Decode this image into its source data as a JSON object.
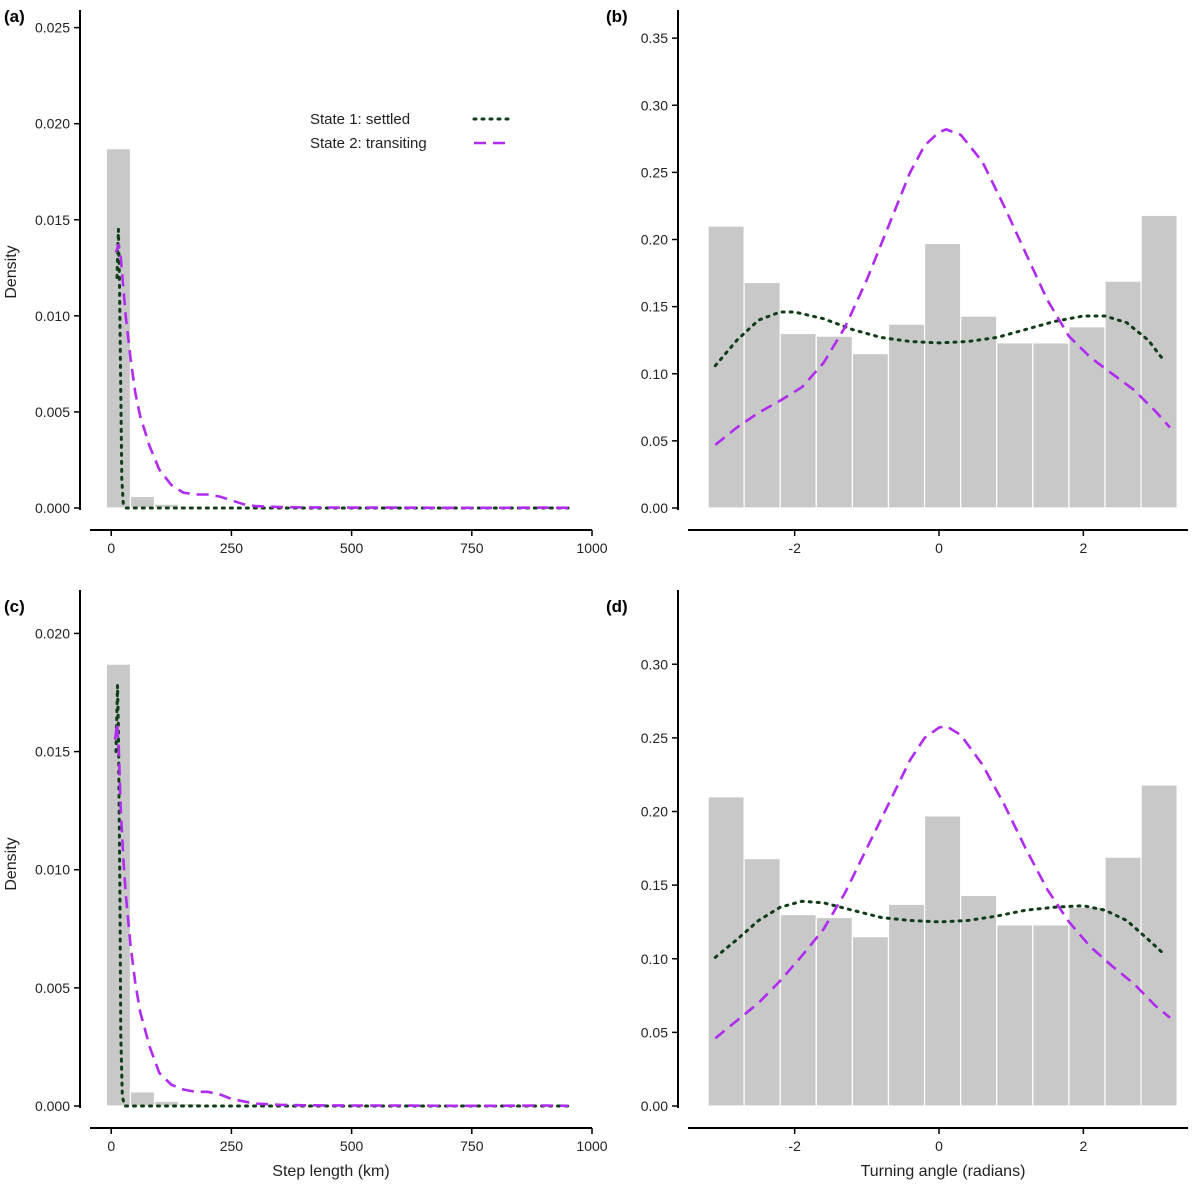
{
  "colors": {
    "bar": "#c8c8c8",
    "settled": "#0f3d18",
    "transiting": "#b02bf0",
    "axis": "#000000"
  },
  "legend": {
    "entries": [
      {
        "label": "State 1: settled",
        "series": "settled"
      },
      {
        "label": "State 2: transiting",
        "series": "transiting"
      }
    ]
  },
  "chart_data": [
    {
      "panel": "(a)",
      "type": "bar",
      "xlabel": "",
      "ylabel": "Density",
      "xlim": [
        -40,
        1000
      ],
      "ylim": [
        0,
        0.0255
      ],
      "xticks": [
        0,
        250,
        500,
        750,
        1000
      ],
      "yticks": [
        0,
        0.005,
        0.01,
        0.015,
        0.02,
        0.025
      ],
      "ytick_decimals": 3,
      "histogram": {
        "bin_edges": [
          -10,
          40,
          90,
          140,
          190,
          240,
          290,
          340,
          390,
          440,
          490,
          540,
          590,
          640,
          690,
          740,
          790,
          840,
          890,
          940,
          990
        ],
        "values": [
          0.0187,
          0.0006,
          0.0002,
          0.0001,
          5e-05,
          4e-05,
          3e-05,
          2e-05,
          1e-05,
          1e-05,
          0,
          0,
          0,
          0,
          0,
          0,
          0,
          0,
          0,
          0
        ]
      },
      "series": [
        {
          "name": "State 1: settled",
          "key": "settled",
          "x": [
            12,
            15,
            17,
            20,
            22,
            25,
            30,
            60,
            200,
            400,
            600,
            800,
            950
          ],
          "y": [
            0.012,
            0.0145,
            0.012,
            0.006,
            0.0015,
            0.0002,
            0.0,
            0.0,
            0.0,
            0.0,
            0.0,
            0.0,
            0.0
          ]
        },
        {
          "name": "State 2: transiting",
          "key": "transiting",
          "x": [
            10,
            15,
            20,
            25,
            30,
            40,
            50,
            60,
            80,
            100,
            125,
            150,
            175,
            200,
            225,
            250,
            275,
            300,
            350,
            400,
            500,
            600,
            700,
            800,
            900,
            950
          ],
          "y": [
            0.0133,
            0.0137,
            0.013,
            0.0115,
            0.01,
            0.0078,
            0.006,
            0.0048,
            0.0032,
            0.002,
            0.0012,
            0.0008,
            0.0007,
            0.0007,
            0.0006,
            0.0004,
            0.0002,
            0.0001,
            5e-05,
            3e-05,
            2e-05,
            2e-05,
            1e-05,
            1e-05,
            2e-05,
            1e-05
          ]
        }
      ]
    },
    {
      "panel": "(b)",
      "type": "bar",
      "xlabel": "",
      "ylabel": "",
      "xlim": [
        -3.45,
        3.45
      ],
      "ylim": [
        0,
        0.365
      ],
      "xticks": [
        -2,
        0,
        2
      ],
      "yticks": [
        0,
        0.05,
        0.1,
        0.15,
        0.2,
        0.25,
        0.3,
        0.35
      ],
      "ytick_decimals": 2,
      "histogram": {
        "bin_edges": [
          -3.2,
          -2.7,
          -2.2,
          -1.7,
          -1.2,
          -0.7,
          -0.2,
          0.3,
          0.8,
          1.3,
          1.8,
          2.3,
          2.8,
          3.3
        ],
        "values": [
          0.21,
          0.168,
          0.13,
          0.128,
          0.115,
          0.137,
          0.197,
          0.143,
          0.123,
          0.123,
          0.135,
          0.169,
          0.218
        ]
      },
      "series": [
        {
          "name": "State 1: settled",
          "key": "settled",
          "x": [
            -3.1,
            -2.8,
            -2.5,
            -2.2,
            -2.0,
            -1.6,
            -1.2,
            -0.8,
            -0.4,
            0.0,
            0.4,
            0.8,
            1.2,
            1.6,
            2.0,
            2.3,
            2.6,
            2.9,
            3.1
          ],
          "y": [
            0.106,
            0.125,
            0.14,
            0.146,
            0.146,
            0.141,
            0.133,
            0.127,
            0.124,
            0.123,
            0.124,
            0.127,
            0.133,
            0.139,
            0.143,
            0.143,
            0.138,
            0.125,
            0.111
          ]
        },
        {
          "name": "State 2: transiting",
          "key": "transiting",
          "x": [
            -3.1,
            -2.8,
            -2.5,
            -2.2,
            -1.9,
            -1.6,
            -1.3,
            -1.0,
            -0.7,
            -0.4,
            -0.2,
            0.0,
            0.1,
            0.3,
            0.6,
            0.9,
            1.2,
            1.5,
            1.8,
            2.1,
            2.4,
            2.7,
            3.0,
            3.2
          ],
          "y": [
            0.047,
            0.06,
            0.071,
            0.08,
            0.09,
            0.108,
            0.135,
            0.17,
            0.21,
            0.25,
            0.27,
            0.28,
            0.282,
            0.278,
            0.258,
            0.225,
            0.19,
            0.155,
            0.128,
            0.112,
            0.1,
            0.088,
            0.072,
            0.06
          ]
        }
      ]
    },
    {
      "panel": "(c)",
      "type": "bar",
      "xlabel": "Step length (km)",
      "ylabel": "Density",
      "xlim": [
        -40,
        1000
      ],
      "ylim": [
        0,
        0.0215
      ],
      "xticks": [
        0,
        250,
        500,
        750,
        1000
      ],
      "yticks": [
        0,
        0.005,
        0.01,
        0.015,
        0.02
      ],
      "ytick_decimals": 3,
      "histogram": {
        "bin_edges": [
          -10,
          40,
          90,
          140,
          190,
          240,
          290,
          340,
          390,
          440,
          490,
          540,
          590,
          640,
          690,
          740,
          790,
          840,
          890,
          940,
          990
        ],
        "values": [
          0.0187,
          0.0006,
          0.0002,
          0.0001,
          5e-05,
          4e-05,
          3e-05,
          2e-05,
          1e-05,
          1e-05,
          0,
          0,
          0,
          0,
          0,
          0,
          0,
          0,
          0,
          0
        ]
      },
      "series": [
        {
          "name": "State 1: settled",
          "key": "settled",
          "x": [
            10,
            13,
            15,
            18,
            20,
            23,
            28,
            60,
            200,
            400,
            600,
            800,
            950
          ],
          "y": [
            0.015,
            0.0178,
            0.016,
            0.009,
            0.003,
            0.0004,
            0.0,
            0.0,
            0.0,
            0.0,
            0.0,
            0.0,
            0.0
          ]
        },
        {
          "name": "State 2: transiting",
          "key": "transiting",
          "x": [
            8,
            12,
            16,
            20,
            25,
            30,
            40,
            50,
            60,
            80,
            100,
            125,
            150,
            175,
            200,
            225,
            250,
            275,
            300,
            350,
            400,
            500,
            600,
            700,
            800,
            900,
            950
          ],
          "y": [
            0.0155,
            0.0162,
            0.015,
            0.0125,
            0.0105,
            0.009,
            0.0068,
            0.0052,
            0.004,
            0.0025,
            0.0014,
            0.0009,
            0.0007,
            0.0006,
            0.0006,
            0.0005,
            0.0003,
            0.0002,
            0.0001,
            5e-05,
            3e-05,
            2e-05,
            2e-05,
            1e-05,
            1e-05,
            2e-05,
            1e-05
          ]
        }
      ]
    },
    {
      "panel": "(d)",
      "type": "bar",
      "xlabel": "Turning angle (radians)",
      "ylabel": "",
      "xlim": [
        -3.45,
        3.45
      ],
      "ylim": [
        0,
        0.345
      ],
      "xticks": [
        -2,
        0,
        2
      ],
      "yticks": [
        0,
        0.05,
        0.1,
        0.15,
        0.2,
        0.25,
        0.3
      ],
      "ytick_decimals": 2,
      "histogram": {
        "bin_edges": [
          -3.2,
          -2.7,
          -2.2,
          -1.7,
          -1.2,
          -0.7,
          -0.2,
          0.3,
          0.8,
          1.3,
          1.8,
          2.3,
          2.8,
          3.3
        ],
        "values": [
          0.21,
          0.168,
          0.13,
          0.128,
          0.115,
          0.137,
          0.197,
          0.143,
          0.123,
          0.123,
          0.135,
          0.169,
          0.218
        ]
      },
      "series": [
        {
          "name": "State 1: settled",
          "key": "settled",
          "x": [
            -3.1,
            -2.8,
            -2.5,
            -2.2,
            -1.9,
            -1.6,
            -1.2,
            -0.8,
            -0.4,
            0.0,
            0.4,
            0.8,
            1.2,
            1.6,
            2.0,
            2.3,
            2.6,
            2.9,
            3.1
          ],
          "y": [
            0.101,
            0.113,
            0.126,
            0.135,
            0.139,
            0.138,
            0.133,
            0.128,
            0.126,
            0.125,
            0.126,
            0.129,
            0.133,
            0.135,
            0.136,
            0.133,
            0.126,
            0.113,
            0.104
          ]
        },
        {
          "name": "State 2: transiting",
          "key": "transiting",
          "x": [
            -3.1,
            -2.8,
            -2.5,
            -2.2,
            -1.9,
            -1.6,
            -1.3,
            -1.0,
            -0.7,
            -0.4,
            -0.2,
            0.0,
            0.1,
            0.3,
            0.6,
            0.9,
            1.2,
            1.5,
            1.8,
            2.1,
            2.4,
            2.7,
            3.0,
            3.2
          ],
          "y": [
            0.046,
            0.058,
            0.07,
            0.085,
            0.102,
            0.12,
            0.145,
            0.175,
            0.205,
            0.235,
            0.25,
            0.257,
            0.258,
            0.252,
            0.232,
            0.205,
            0.175,
            0.147,
            0.125,
            0.108,
            0.095,
            0.083,
            0.068,
            0.06
          ]
        }
      ]
    }
  ]
}
